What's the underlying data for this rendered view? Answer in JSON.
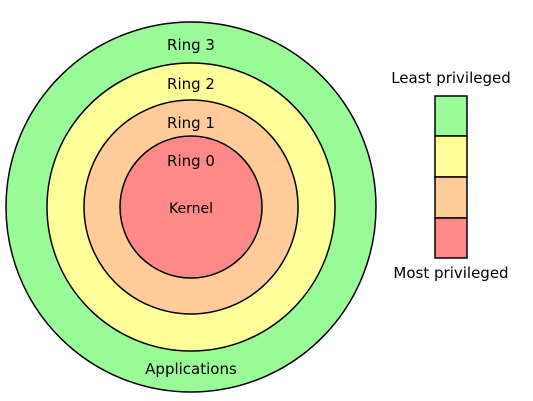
{
  "diagram": {
    "rings": [
      {
        "label": "Ring 3",
        "color": "#98fb98"
      },
      {
        "label": "Ring 2",
        "color": "#ffff99"
      },
      {
        "label": "Ring 1",
        "color": "#ffcc99"
      },
      {
        "label": "Ring 0",
        "color": "#ff8888"
      }
    ],
    "kernel_label": "Kernel",
    "applications_label": "Applications"
  },
  "legend": {
    "top_label": "Least privileged",
    "bottom_label": "Most privileged",
    "swatches": [
      "#98fb98",
      "#ffff99",
      "#ffcc99",
      "#ff8888"
    ]
  }
}
